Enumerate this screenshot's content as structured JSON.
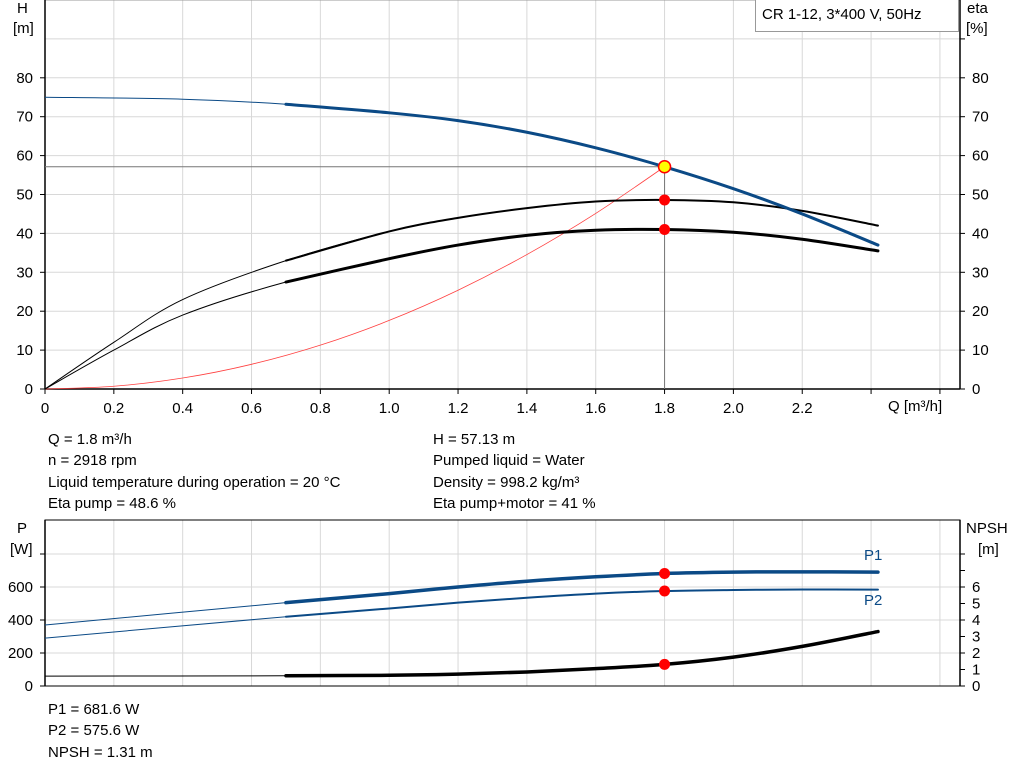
{
  "title_box": "CR 1-12, 3*400 V, 50Hz",
  "colors": {
    "head": "#0b4a86",
    "eta": "#000000",
    "system": "#ff4040",
    "power": "#0b4a86",
    "npsh": "#000000",
    "duty_point": "#ff0000",
    "duty_point_head": "#ffff00"
  },
  "info_left": [
    "Q = 1.8 m³/h",
    "n = 2918 rpm",
    "Liquid temperature during operation = 20 °C",
    "Eta pump = 48.6 %"
  ],
  "info_right": [
    "H = 57.13 m",
    "Pumped liquid = Water",
    "Density = 998.2 kg/m³",
    "Eta pump+motor = 41 %"
  ],
  "info_bottom": [
    "P1 = 681.6 W",
    "P2 = 575.6 W",
    "NPSH = 1.31 m"
  ],
  "chart_data": [
    {
      "type": "line",
      "xlabel": "Q [m³/h]",
      "ylabel_left": "H\n[m]",
      "ylabel_left_name": "H",
      "ylabel_left_unit": "[m]",
      "ylabel_right_name": "eta",
      "ylabel_right_unit": "[%]",
      "xlim": [
        0,
        2.6
      ],
      "ylim": [
        0,
        90
      ],
      "x_ticks": [
        "0",
        "0.2",
        "0.4",
        "0.6",
        "0.8",
        "1.0",
        "1.2",
        "1.4",
        "1.6",
        "1.8",
        "2.0",
        "2.2"
      ],
      "y_ticks": [
        "0",
        "10",
        "20",
        "30",
        "40",
        "50",
        "60",
        "70",
        "80"
      ],
      "grid": true,
      "duty_point": {
        "Q": 1.8,
        "H": 57.13,
        "eta_pump": 48.6,
        "eta_total": 41
      },
      "series": [
        {
          "key": "head",
          "x": [
            0,
            0.4,
            0.7,
            1.0,
            1.2,
            1.4,
            1.6,
            1.8,
            2.0,
            2.2,
            2.42
          ],
          "y": [
            75,
            74.5,
            73.2,
            71,
            69,
            66,
            62,
            57.13,
            51.5,
            45,
            37
          ]
        },
        {
          "key": "eta_pump",
          "x": [
            0,
            0.2,
            0.4,
            0.7,
            1.0,
            1.2,
            1.4,
            1.6,
            1.8,
            2.0,
            2.2,
            2.42
          ],
          "y": [
            0,
            12,
            23,
            33,
            40.5,
            44,
            46.5,
            48.2,
            48.6,
            48,
            45.8,
            42
          ]
        },
        {
          "key": "eta_total",
          "x": [
            0,
            0.2,
            0.4,
            0.7,
            1.0,
            1.2,
            1.4,
            1.6,
            1.8,
            2.0,
            2.2,
            2.42
          ],
          "y": [
            0,
            10,
            19,
            27.5,
            33.5,
            37,
            39.5,
            40.8,
            41,
            40.3,
            38.5,
            35.5
          ]
        },
        {
          "key": "system",
          "x": [
            0,
            0.2,
            0.4,
            0.6,
            0.8,
            1.0,
            1.2,
            1.4,
            1.6,
            1.8
          ],
          "y": [
            0,
            0.71,
            2.82,
            6.35,
            11.28,
            17.63,
            25.39,
            34.56,
            45.14,
            57.13
          ]
        }
      ]
    },
    {
      "type": "line",
      "ylabel_left_name": "P",
      "ylabel_left_unit": "[W]",
      "ylabel_right_name": "NPSH",
      "ylabel_right_unit": "[m]",
      "xlim": [
        0,
        2.6
      ],
      "ylim_left": [
        0,
        1000
      ],
      "ylim_right": [
        0,
        10
      ],
      "y_ticks_left": [
        "0",
        "200",
        "400",
        "600"
      ],
      "y_ticks_right": [
        "0",
        "1",
        "2",
        "3",
        "4",
        "5",
        "6"
      ],
      "grid": true,
      "series": [
        {
          "key": "P1",
          "name": "P1",
          "axis": "left",
          "x": [
            0,
            0.7,
            1.0,
            1.2,
            1.4,
            1.6,
            1.8,
            2.0,
            2.2,
            2.42
          ],
          "y": [
            370,
            505,
            560,
            600,
            635,
            662,
            681.6,
            690,
            692,
            690
          ]
        },
        {
          "key": "P2",
          "name": "P2",
          "axis": "left",
          "x": [
            0,
            0.7,
            1.0,
            1.2,
            1.4,
            1.6,
            1.8,
            2.0,
            2.2,
            2.42
          ],
          "y": [
            290,
            420,
            470,
            505,
            535,
            560,
            575.6,
            582,
            585,
            584
          ]
        },
        {
          "key": "NPSH",
          "axis": "right",
          "x": [
            0,
            0.7,
            1.0,
            1.2,
            1.4,
            1.6,
            1.8,
            2.0,
            2.2,
            2.42
          ],
          "y": [
            0.6,
            0.62,
            0.65,
            0.72,
            0.85,
            1.05,
            1.31,
            1.75,
            2.4,
            3.3
          ]
        }
      ]
    }
  ]
}
